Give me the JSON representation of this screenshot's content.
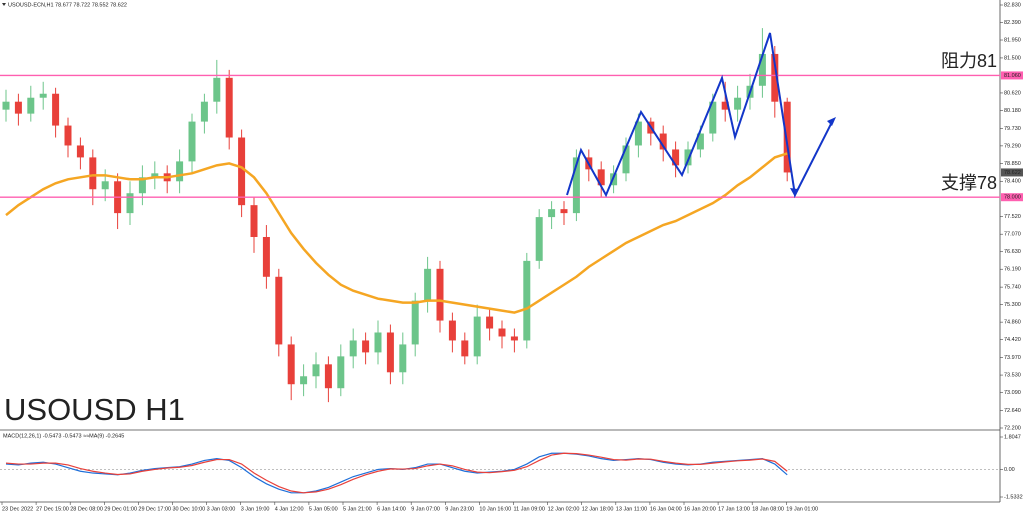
{
  "chart_data": [
    {
      "type": "candlestick",
      "header": "USOUSD-ECN,H1  78.677 78.722 78.552 78.622",
      "title": "USOUSD H1",
      "x_labels": [
        "23 Dec 2022",
        "27 Dec 15:00",
        "28 Dec 08:00",
        "29 Dec 01:00",
        "29 Dec 17:00",
        "30 Dec 10:00",
        "3 Jan 03:00",
        "3 Jan 19:00",
        "4 Jan 12:00",
        "5 Jan 05:00",
        "5 Jan 21:00",
        "6 Jan 14:00",
        "9 Jan 07:00",
        "9 Jan 23:00",
        "10 Jan 16:00",
        "11 Jan 09:00",
        "12 Jan 02:00",
        "12 Jan 18:00",
        "13 Jan 11:00",
        "16 Jan 04:00",
        "16 Jan 20:00",
        "17 Jan 13:00",
        "18 Jan 08:00",
        "19 Jan 01:00"
      ],
      "open": [
        80.2,
        80.4,
        80.1,
        80.5,
        80.6,
        79.8,
        79.3,
        79.0,
        78.2,
        78.4,
        77.6,
        78.1,
        78.5,
        78.6,
        78.4,
        78.9,
        79.9,
        80.4,
        81.0,
        79.5,
        77.8,
        77.0,
        76.0,
        74.3,
        73.3,
        73.5,
        73.8,
        73.2,
        74.0,
        74.4,
        74.1,
        74.6,
        73.6,
        74.3,
        75.4,
        76.2,
        74.9,
        74.4,
        74.0,
        75.0,
        74.7,
        74.5,
        74.4,
        76.4,
        77.5,
        77.7,
        77.6,
        79.0,
        78.7,
        78.3,
        78.6,
        79.3,
        79.9,
        79.6,
        79.2,
        78.8,
        79.2,
        79.6,
        80.4,
        80.2,
        80.5,
        80.8,
        81.6,
        80.4
      ],
      "high": [
        80.7,
        80.6,
        80.8,
        80.9,
        80.75,
        80.0,
        79.5,
        79.2,
        78.7,
        78.6,
        78.4,
        78.8,
        78.9,
        78.8,
        79.2,
        80.1,
        80.6,
        81.45,
        81.2,
        79.7,
        78.0,
        77.3,
        76.2,
        74.5,
        73.8,
        74.1,
        74.0,
        74.3,
        74.7,
        74.6,
        74.9,
        74.8,
        74.6,
        75.6,
        76.5,
        76.4,
        75.1,
        74.6,
        75.3,
        75.2,
        74.9,
        74.7,
        76.6,
        77.7,
        77.9,
        77.9,
        79.2,
        79.2,
        78.9,
        78.8,
        79.5,
        80.1,
        80.0,
        79.8,
        79.4,
        79.4,
        79.8,
        80.6,
        80.9,
        80.8,
        81.1,
        82.25,
        81.8,
        80.5
      ],
      "low": [
        79.9,
        79.8,
        79.9,
        80.2,
        79.5,
        79.0,
        78.7,
        77.8,
        77.9,
        77.2,
        77.3,
        77.8,
        78.2,
        78.1,
        78.1,
        78.6,
        79.6,
        80.1,
        79.2,
        77.5,
        76.6,
        75.7,
        74.0,
        72.9,
        73.0,
        73.2,
        72.85,
        73.0,
        73.7,
        73.8,
        73.8,
        73.3,
        73.3,
        74.0,
        75.1,
        74.6,
        74.1,
        73.8,
        73.8,
        74.4,
        74.2,
        74.1,
        74.2,
        76.2,
        77.2,
        77.3,
        77.4,
        78.4,
        78.0,
        78.1,
        78.4,
        79.0,
        79.3,
        78.9,
        78.5,
        78.6,
        79.0,
        79.4,
        79.9,
        79.9,
        80.2,
        80.5,
        80.0,
        78.4
      ],
      "close": [
        80.4,
        80.1,
        80.5,
        80.6,
        79.8,
        79.3,
        79.0,
        78.2,
        78.4,
        77.6,
        78.1,
        78.5,
        78.6,
        78.4,
        78.9,
        79.9,
        80.4,
        81.0,
        79.5,
        77.8,
        77.0,
        76.0,
        74.3,
        73.3,
        73.5,
        73.8,
        73.2,
        74.0,
        74.4,
        74.1,
        74.6,
        73.6,
        74.3,
        75.4,
        76.2,
        74.9,
        74.4,
        74.0,
        75.0,
        74.7,
        74.5,
        74.4,
        76.4,
        77.5,
        77.7,
        77.6,
        79.0,
        78.7,
        78.3,
        78.6,
        79.3,
        79.9,
        79.6,
        79.2,
        78.8,
        79.2,
        79.6,
        80.4,
        80.2,
        80.5,
        80.8,
        81.6,
        80.4,
        78.622
      ],
      "up_color": "#6cc58a",
      "down_color": "#e8403a",
      "overlay": {
        "color": "#f5a623",
        "values": [
          77.55,
          77.8,
          78.0,
          78.2,
          78.35,
          78.45,
          78.5,
          78.55,
          78.55,
          78.5,
          78.45,
          78.45,
          78.5,
          78.5,
          78.55,
          78.6,
          78.7,
          78.8,
          78.85,
          78.75,
          78.5,
          78.1,
          77.6,
          77.1,
          76.7,
          76.35,
          76.05,
          75.8,
          75.65,
          75.55,
          75.45,
          75.4,
          75.35,
          75.35,
          75.4,
          75.4,
          75.35,
          75.3,
          75.25,
          75.2,
          75.15,
          75.1,
          75.2,
          75.4,
          75.6,
          75.8,
          76.0,
          76.25,
          76.45,
          76.65,
          76.85,
          77.0,
          77.15,
          77.3,
          77.4,
          77.55,
          77.7,
          77.85,
          78.05,
          78.3,
          78.5,
          78.75,
          79.0,
          79.1
        ]
      },
      "ylim": [
        72.2,
        82.83
      ],
      "yticks": [
        {
          "value": 82.83,
          "label": "82.830"
        },
        {
          "value": 82.39,
          "label": "82.390"
        },
        {
          "value": 81.95,
          "label": "81.950"
        },
        {
          "value": 81.5,
          "label": "81.500"
        },
        {
          "value": 80.62,
          "label": "80.620"
        },
        {
          "value": 80.18,
          "label": "80.180"
        },
        {
          "value": 79.73,
          "label": "79.730"
        },
        {
          "value": 79.29,
          "label": "79.290"
        },
        {
          "value": 78.85,
          "label": "78.850"
        },
        {
          "value": 78.4,
          "label": "78.400"
        },
        {
          "value": 77.52,
          "label": "77.520"
        },
        {
          "value": 77.07,
          "label": "77.070"
        },
        {
          "value": 76.63,
          "label": "76.630"
        },
        {
          "value": 76.19,
          "label": "76.190"
        },
        {
          "value": 75.74,
          "label": "75.740"
        },
        {
          "value": 75.3,
          "label": "75.300"
        },
        {
          "value": 74.86,
          "label": "74.860"
        },
        {
          "value": 74.42,
          "label": "74.420"
        },
        {
          "value": 73.97,
          "label": "73.970"
        },
        {
          "value": 73.53,
          "label": "73.530"
        },
        {
          "value": 73.09,
          "label": "73.090"
        },
        {
          "value": 72.64,
          "label": "72.640"
        },
        {
          "value": 72.2,
          "label": "72.200"
        }
      ],
      "levels": [
        {
          "value": 81.06,
          "label": "81.060",
          "color": "#ff5fb0"
        },
        {
          "value": 78.0,
          "label": "78.000",
          "color": "#ff5fb0"
        }
      ],
      "last_price": {
        "value": 78.622,
        "label": "78.622"
      },
      "annotations": [
        {
          "text": "阻力81",
          "value": 81.06
        },
        {
          "text": "支撑78",
          "value": 78.0
        }
      ]
    },
    {
      "type": "line",
      "label": "MACD(12,26,1) -0.5473 -0.5473 ≈≈MA(9) -0.2645",
      "ylim": [
        -1.5332,
        1.8047
      ],
      "yticks": [
        1.8047,
        {
          "value": 0,
          "label": "0.00"
        },
        -1.5332
      ],
      "series": [
        {
          "color": "#1e6fd9",
          "values": [
            0.3,
            0.25,
            0.35,
            0.4,
            0.3,
            0.1,
            -0.1,
            -0.2,
            -0.25,
            -0.3,
            -0.2,
            -0.05,
            0.05,
            0.1,
            0.15,
            0.3,
            0.5,
            0.6,
            0.5,
            0.1,
            -0.4,
            -0.8,
            -1.1,
            -1.3,
            -1.3,
            -1.2,
            -1.0,
            -0.7,
            -0.4,
            -0.2,
            0.0,
            0.05,
            0.0,
            0.1,
            0.3,
            0.3,
            0.1,
            -0.1,
            -0.2,
            -0.15,
            -0.1,
            0.0,
            0.3,
            0.7,
            0.9,
            0.9,
            0.85,
            0.75,
            0.6,
            0.5,
            0.55,
            0.6,
            0.55,
            0.4,
            0.3,
            0.25,
            0.3,
            0.4,
            0.45,
            0.5,
            0.55,
            0.6,
            0.3,
            -0.3
          ]
        },
        {
          "color": "#e8403a",
          "values": [
            0.35,
            0.3,
            0.3,
            0.35,
            0.35,
            0.25,
            0.05,
            -0.1,
            -0.2,
            -0.28,
            -0.25,
            -0.1,
            0.0,
            0.08,
            0.12,
            0.22,
            0.4,
            0.55,
            0.55,
            0.3,
            -0.2,
            -0.6,
            -0.95,
            -1.2,
            -1.3,
            -1.25,
            -1.1,
            -0.85,
            -0.55,
            -0.3,
            -0.1,
            0.03,
            0.02,
            0.05,
            0.2,
            0.3,
            0.2,
            0.0,
            -0.15,
            -0.18,
            -0.12,
            -0.05,
            0.15,
            0.5,
            0.8,
            0.9,
            0.88,
            0.8,
            0.68,
            0.55,
            0.52,
            0.58,
            0.57,
            0.45,
            0.35,
            0.28,
            0.28,
            0.35,
            0.42,
            0.48,
            0.52,
            0.58,
            0.45,
            -0.1
          ]
        }
      ]
    }
  ]
}
